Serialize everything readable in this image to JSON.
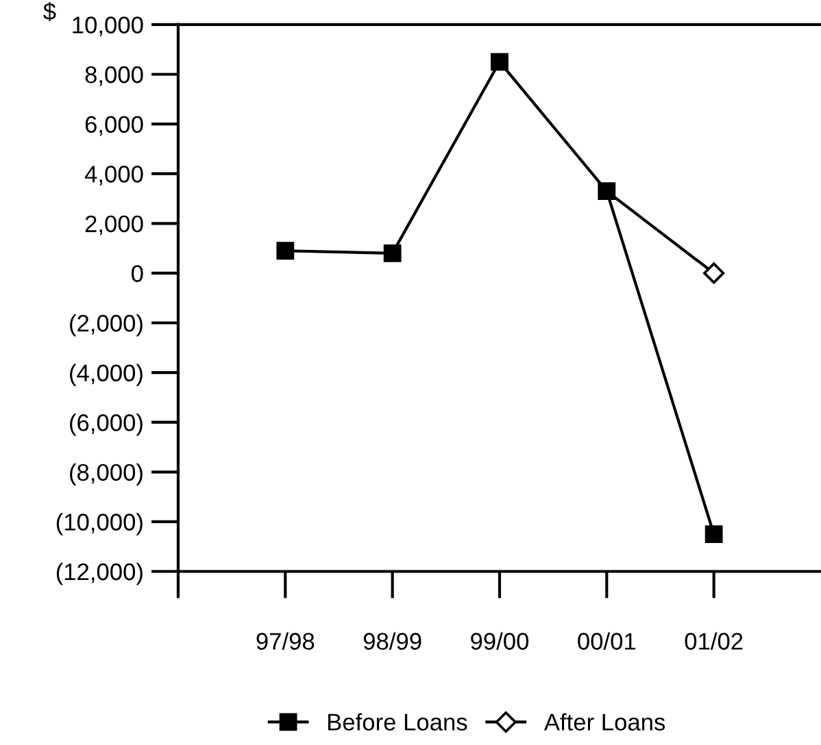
{
  "chart_data": {
    "type": "line",
    "ylabel": "$",
    "categories": [
      "97/98",
      "98/99",
      "99/00",
      "00/01",
      "01/02"
    ],
    "series": [
      {
        "name": "Before Loans",
        "color": "#000000",
        "marker": "square",
        "values": [
          900,
          800,
          8500,
          3300,
          -10500
        ]
      },
      {
        "name": "After Loans",
        "color": "#000000",
        "marker": "diamond",
        "values": [
          null,
          null,
          null,
          3300,
          0
        ]
      }
    ],
    "ylim": [
      -12000,
      10000
    ],
    "yticks": [
      {
        "value": 10000,
        "label": "10,000"
      },
      {
        "value": 8000,
        "label": "8,000"
      },
      {
        "value": 6000,
        "label": "6,000"
      },
      {
        "value": 4000,
        "label": "4,000"
      },
      {
        "value": 2000,
        "label": "2,000"
      },
      0,
      {
        "value": -2000,
        "label": "(2,000)"
      },
      {
        "value": -4000,
        "label": "(4,000)"
      },
      {
        "value": -6000,
        "label": "(6,000)"
      },
      {
        "value": -8000,
        "label": "(8,000)"
      },
      {
        "value": -10000,
        "label": "(10,000)"
      },
      {
        "value": -12000,
        "label": "(12,000)"
      }
    ],
    "grid": false,
    "legend": "bottom",
    "line_style": "solid"
  }
}
